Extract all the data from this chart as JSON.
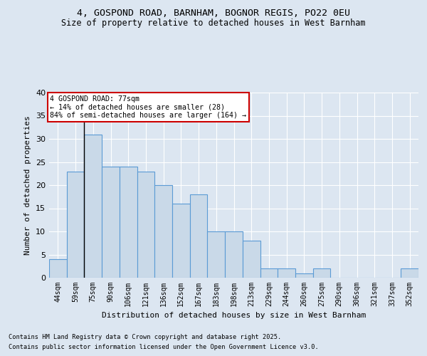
{
  "title1": "4, GOSPOND ROAD, BARNHAM, BOGNOR REGIS, PO22 0EU",
  "title2": "Size of property relative to detached houses in West Barnham",
  "xlabel": "Distribution of detached houses by size in West Barnham",
  "ylabel": "Number of detached properties",
  "categories": [
    "44sqm",
    "59sqm",
    "75sqm",
    "90sqm",
    "106sqm",
    "121sqm",
    "136sqm",
    "152sqm",
    "167sqm",
    "183sqm",
    "198sqm",
    "213sqm",
    "229sqm",
    "244sqm",
    "260sqm",
    "275sqm",
    "290sqm",
    "306sqm",
    "321sqm",
    "337sqm",
    "352sqm"
  ],
  "values": [
    4,
    23,
    31,
    24,
    24,
    23,
    20,
    16,
    18,
    10,
    10,
    8,
    2,
    2,
    1,
    2,
    0,
    0,
    0,
    0,
    2
  ],
  "bar_color": "#c9d9e8",
  "bar_edge_color": "#5b9bd5",
  "annotation_text": "4 GOSPOND ROAD: 77sqm\n← 14% of detached houses are smaller (28)\n84% of semi-detached houses are larger (164) →",
  "annotation_box_color": "#ffffff",
  "annotation_box_edge": "#cc0000",
  "bg_color": "#dce6f1",
  "plot_bg_color": "#dce6f1",
  "grid_color": "#ffffff",
  "footnote1": "Contains HM Land Registry data © Crown copyright and database right 2025.",
  "footnote2": "Contains public sector information licensed under the Open Government Licence v3.0.",
  "ylim": [
    0,
    40
  ],
  "yticks": [
    0,
    5,
    10,
    15,
    20,
    25,
    30,
    35,
    40
  ],
  "vline_index": 1.5
}
